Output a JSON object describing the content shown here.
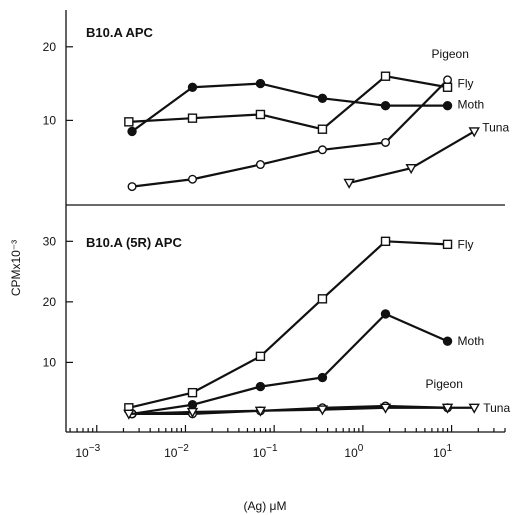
{
  "chart_data": {
    "type": "line",
    "x_scale": "log",
    "xlabel": "(Ag) μM",
    "ylabel": "CPMx10⁻³",
    "x_ticks": [
      {
        "value": 0.001,
        "base": "10",
        "exp": "−3"
      },
      {
        "value": 0.01,
        "base": "10",
        "exp": "−2"
      },
      {
        "value": 0.1,
        "base": "10",
        "exp": "−1"
      },
      {
        "value": 1,
        "base": "10",
        "exp": "0"
      },
      {
        "value": 10,
        "base": "10",
        "exp": "1"
      }
    ],
    "xlim": [
      0.00045,
      40
    ],
    "panels": [
      {
        "title": "B10.A APC",
        "ylim": [
          -1.5,
          25
        ],
        "y_ticks": [
          10,
          20
        ],
        "series": [
          {
            "name": "Pigeon",
            "marker": "open-circle",
            "x": [
              0.0025,
              0.012,
              0.07,
              0.35,
              1.8,
              9
            ],
            "y": [
              1,
              2,
              4,
              6,
              7,
              15.5
            ]
          },
          {
            "name": "Fly",
            "marker": "open-square",
            "x": [
              0.0023,
              0.012,
              0.07,
              0.35,
              1.8,
              9
            ],
            "y": [
              9.8,
              10.3,
              10.8,
              8.8,
              16,
              14.5
            ]
          },
          {
            "name": "Moth",
            "marker": "filled-circle",
            "x": [
              0.0025,
              0.012,
              0.07,
              0.35,
              1.8,
              9
            ],
            "y": [
              8.5,
              14.5,
              15,
              13,
              12,
              12
            ]
          },
          {
            "name": "Tuna",
            "marker": "open-triangle",
            "x": [
              0.7,
              3.5,
              18
            ],
            "y": [
              1.5,
              3.5,
              8.5
            ]
          }
        ]
      },
      {
        "title": "B10.A (5R) APC",
        "ylim": [
          -1.5,
          36
        ],
        "y_ticks": [
          10,
          20,
          30
        ],
        "series": [
          {
            "name": "Fly",
            "marker": "open-square",
            "x": [
              0.0023,
              0.012,
              0.07,
              0.35,
              1.8,
              9
            ],
            "y": [
              2.5,
              5,
              11,
              20.5,
              30,
              29.5
            ]
          },
          {
            "name": "Moth",
            "marker": "filled-circle",
            "x": [
              0.0025,
              0.012,
              0.07,
              0.35,
              1.8,
              9
            ],
            "y": [
              1.5,
              3,
              6,
              7.5,
              18,
              13.5
            ]
          },
          {
            "name": "Pigeon",
            "marker": "open-circle",
            "x": [
              0.0025,
              0.012,
              0.07,
              0.35,
              1.8,
              9
            ],
            "y": [
              1.5,
              1.5,
              2,
              2.5,
              2.8,
              2.5
            ]
          },
          {
            "name": "Tuna",
            "marker": "open-triangle",
            "x": [
              0.0023,
              0.012,
              0.07,
              0.35,
              1.8,
              9,
              18
            ],
            "y": [
              1.5,
              1.8,
              2,
              2.2,
              2.5,
              2.5,
              2.5
            ]
          }
        ]
      }
    ]
  }
}
